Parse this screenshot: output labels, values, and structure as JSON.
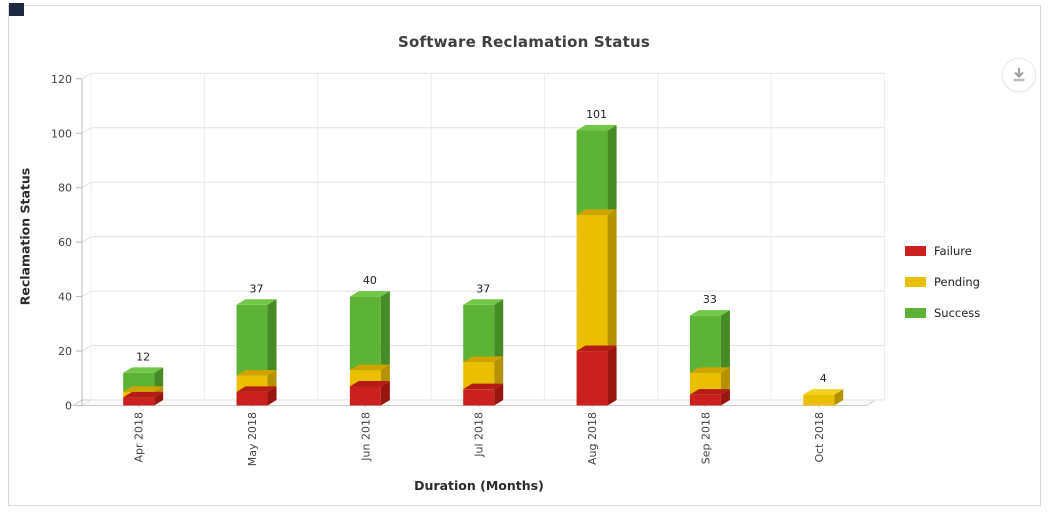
{
  "panel": {
    "title": "Software Reclamation Status"
  },
  "toolbar": {
    "download_icon": "download-icon"
  },
  "chart_data": {
    "type": "bar",
    "stacked": true,
    "three_d": true,
    "title": "Software Reclamation Status",
    "categories": [
      "Apr 2018",
      "May 2018",
      "Jun 2018",
      "Jul 2018",
      "Aug 2018",
      "Sep 2018",
      "Oct 2018"
    ],
    "series": [
      {
        "name": "Failure",
        "color": "#cb211e",
        "color_side": "#99150f",
        "color_band": "#b41c17",
        "color_light": "#e0463a",
        "values": [
          3,
          5,
          7,
          6,
          20,
          4,
          0
        ]
      },
      {
        "name": "Pending",
        "color": "#eabf00",
        "color_side": "#b59200",
        "color_band": "#cfa300",
        "color_light": "#f3d321",
        "values": [
          2,
          6,
          6,
          10,
          50,
          8,
          4
        ]
      },
      {
        "name": "Success",
        "color": "#5db335",
        "color_side": "#468b25",
        "color_band": "#54a22e",
        "color_light": "#72c747",
        "values": [
          7,
          26,
          27,
          21,
          31,
          21,
          0
        ]
      }
    ],
    "totals": [
      12,
      37,
      40,
      37,
      101,
      33,
      4
    ],
    "xlabel": "Duration (Months)",
    "ylabel": "Reclamation Status",
    "ylim": [
      0,
      120
    ],
    "yticks": [
      0,
      20,
      40,
      60,
      80,
      100,
      120
    ],
    "grid": true,
    "legend_position": "right",
    "x_label_rotation": -90
  },
  "legend": {
    "items": [
      {
        "label": "Failure",
        "color": "#cb211e"
      },
      {
        "label": "Pending",
        "color": "#eabf00"
      },
      {
        "label": "Success",
        "color": "#5db335"
      }
    ]
  },
  "style": {
    "grid_color": "#e2e2e2",
    "grid_color_vertical": "#ececec",
    "axis_color": "#b9b9b9",
    "tick_label_color": "#444444",
    "total_label_color": "#222222",
    "title_color": "#3f3f3f",
    "panel_border_color": "#d9d9d9",
    "download_icon_color": "#a0a0a0",
    "corner_artifact_color": "#1c2940"
  }
}
